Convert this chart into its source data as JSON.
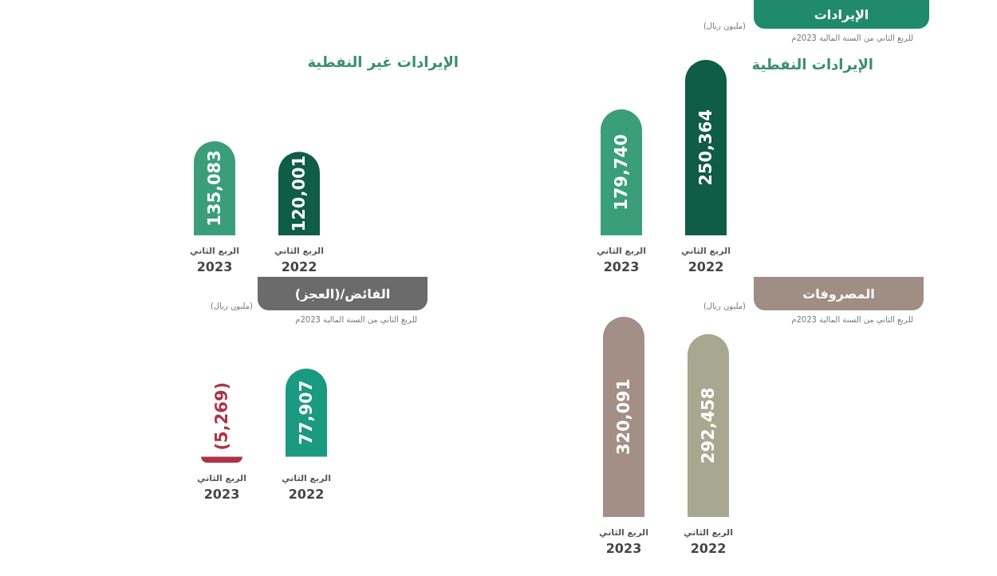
{
  "chart_data": [
    {
      "type": "bar",
      "title": "الإيرادات النفطية",
      "annotations": [
        "الإيرادات",
        "للربع الثاني من السنة المالية 2023م",
        "(مليون ريال)"
      ],
      "categories": [
        "الربع الثاني\n2023",
        "الربع الثاني\n2022"
      ],
      "values": [
        179740,
        250364
      ],
      "colors": [
        "#3a9e7a",
        "#0f5c47"
      ],
      "value_labels": [
        "179,740",
        "250,364"
      ]
    },
    {
      "type": "bar",
      "title": "الإيرادات غير النفطية",
      "categories": [
        "الربع الثاني\n2023",
        "الربع الثاني\n2022"
      ],
      "values": [
        135083,
        120001
      ],
      "colors": [
        "#3a9e7a",
        "#0f5c47"
      ],
      "value_labels": [
        "135,083",
        "120,001"
      ]
    },
    {
      "type": "bar",
      "annotations": [
        "المصروفات",
        "للربع الثاني من السنة المالية 2023م",
        "(مليون ريال)"
      ],
      "categories": [
        "الربع الثاني\n2023",
        "الربع الثاني\n2022"
      ],
      "values": [
        320091,
        292458
      ],
      "colors": [
        "#a38f86",
        "#a8a78f"
      ],
      "value_labels": [
        "320,091",
        "292,458"
      ]
    },
    {
      "type": "bar",
      "title": "الفائض/(العجز)",
      "annotations": [
        "للربع الثاني من السنة المالية 2023م",
        "(مليون ريال)"
      ],
      "categories": [
        "الربع الثاني\n2023",
        "الربع الثاني\n2022"
      ],
      "values": [
        -5269,
        77907
      ],
      "colors": [
        "#b03345",
        "#1a9a80"
      ],
      "value_labels": [
        "(5,269)",
        "77,907"
      ]
    }
  ]
}
